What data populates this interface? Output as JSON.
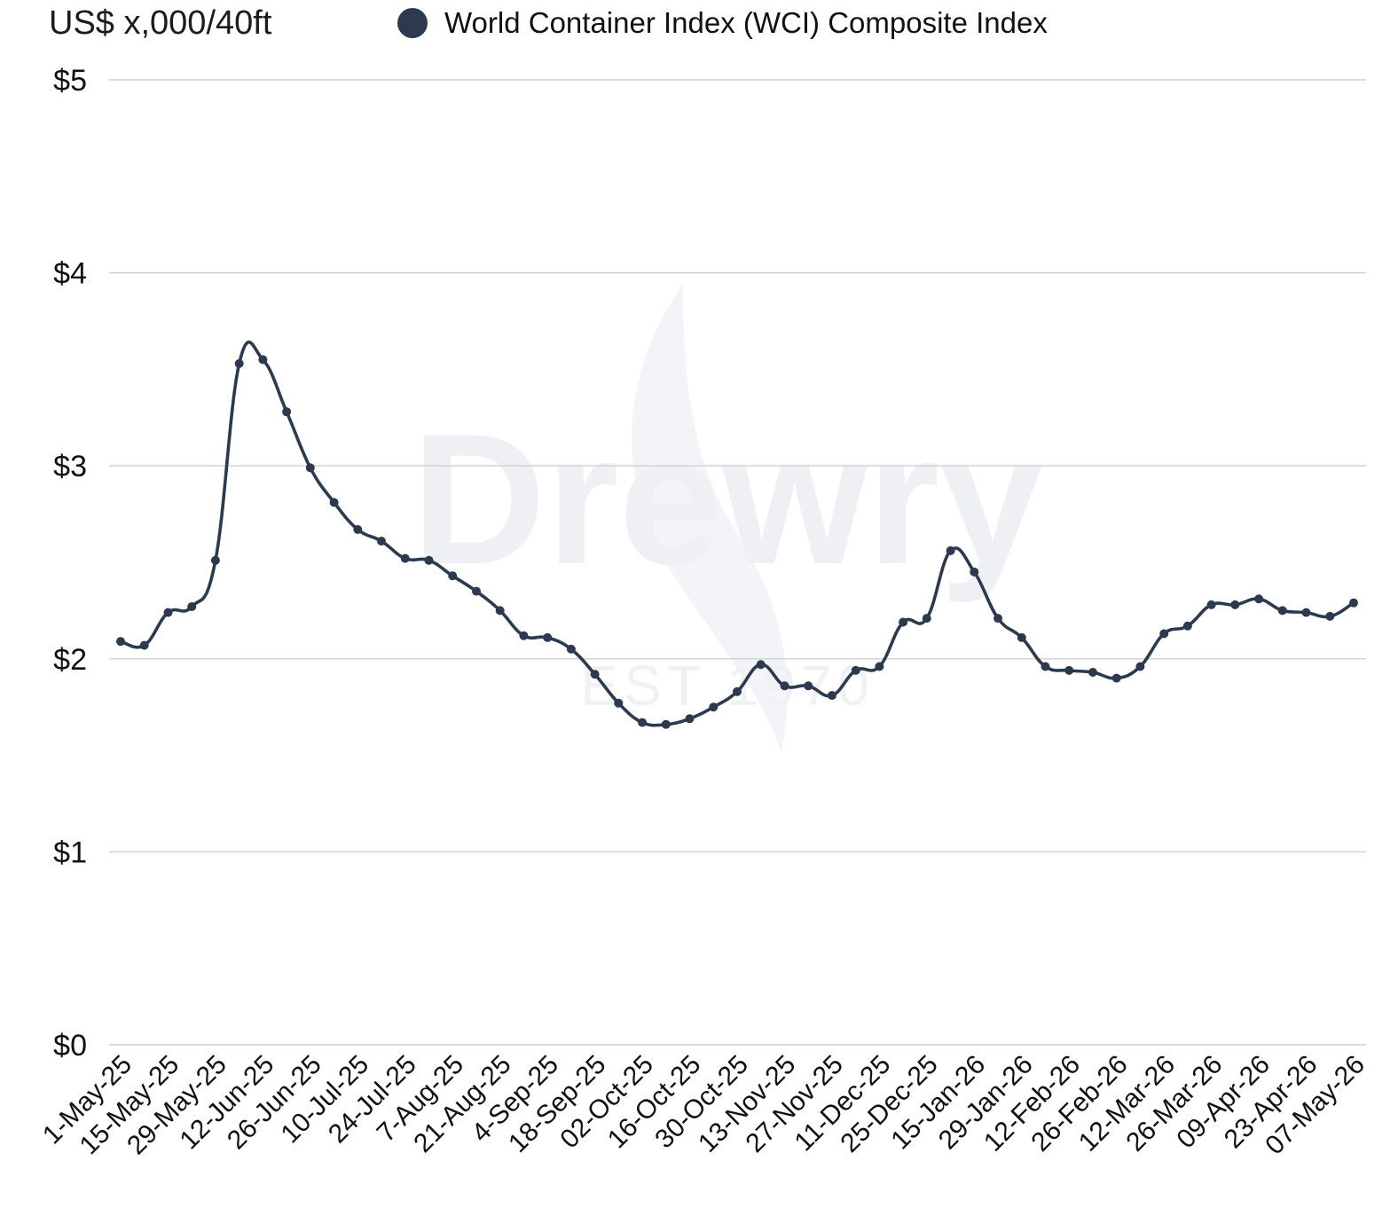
{
  "unit_label": "US$ x,000/40ft",
  "watermark": {
    "brand": "Drewry",
    "est": "EST 1970"
  },
  "legend": {
    "label": "World Container Index (WCI) Composite Index",
    "color": "#2b3a4e"
  },
  "chart_data": {
    "type": "line",
    "ylim": [
      0,
      5
    ],
    "y_ticks": [
      {
        "value": 0,
        "label": "$0"
      },
      {
        "value": 1,
        "label": "$1"
      },
      {
        "value": 2,
        "label": "$2"
      },
      {
        "value": 3,
        "label": "$3"
      },
      {
        "value": 4,
        "label": "$4"
      },
      {
        "value": 5,
        "label": "$5"
      }
    ],
    "x_tick_labels": [
      "1-May-25",
      "15-May-25",
      "29-May-25",
      "12-Jun-25",
      "26-Jun-25",
      "10-Jul-25",
      "24-Jul-25",
      "7-Aug-25",
      "21-Aug-25",
      "4-Sep-25",
      "18-Sep-25",
      "02-Oct-25",
      "16-Oct-25",
      "30-Oct-25",
      "13-Nov-25",
      "27-Nov-25",
      "11-Dec-25",
      "25-Dec-25",
      "15-Jan-26",
      "29-Jan-26",
      "12-Feb-26",
      "26-Feb-26",
      "12-Mar-26",
      "26-Mar-26",
      "09-Apr-26",
      "23-Apr-26",
      "07-May-26"
    ],
    "series": [
      {
        "name": "World Container Index (WCI) Composite Index",
        "color": "#2b3a4e",
        "values": [
          2.09,
          2.07,
          2.24,
          2.27,
          2.51,
          3.53,
          3.55,
          3.28,
          2.99,
          2.81,
          2.67,
          2.61,
          2.52,
          2.51,
          2.43,
          2.35,
          2.25,
          2.12,
          2.11,
          2.05,
          1.92,
          1.77,
          1.67,
          1.66,
          1.69,
          1.75,
          1.83,
          1.97,
          1.86,
          1.86,
          1.81,
          1.94,
          1.96,
          2.19,
          2.21,
          2.56,
          2.45,
          2.21,
          2.11,
          1.96,
          1.94,
          1.93,
          1.9,
          1.96,
          2.13,
          2.17,
          2.28,
          2.28,
          2.31,
          2.25,
          2.24,
          2.22,
          2.29
        ]
      }
    ],
    "grid": true,
    "legend_position": "top"
  }
}
